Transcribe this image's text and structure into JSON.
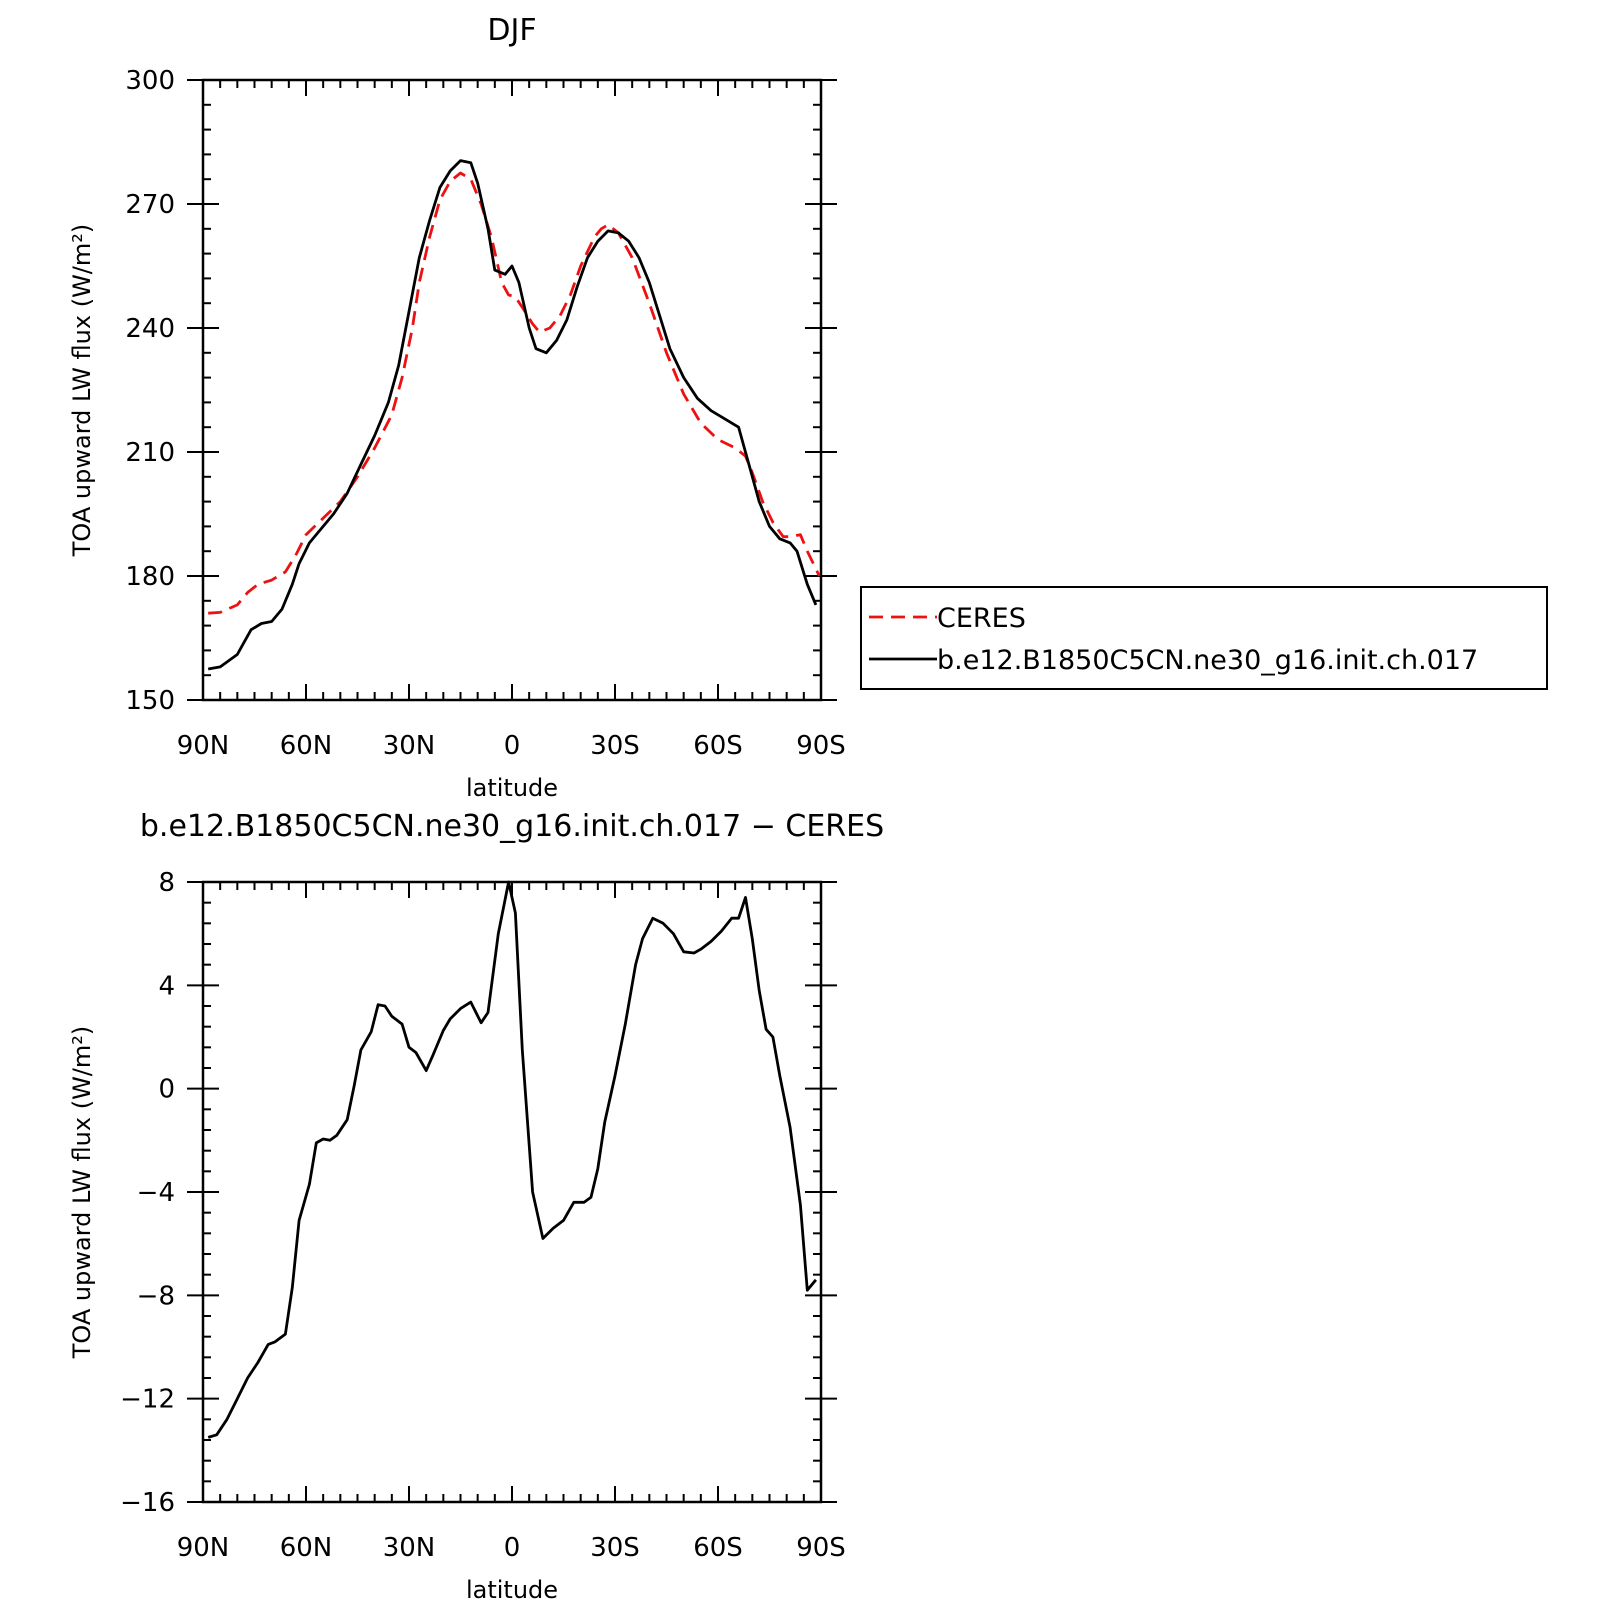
{
  "chart_data": [
    {
      "type": "line",
      "title": "DJF",
      "xlabel": "latitude",
      "ylabel": "TOA upward LW flux (W/m²)",
      "ylim": [
        150,
        300
      ],
      "yticks": [
        "300",
        "270",
        "240",
        "210",
        "180",
        "150"
      ],
      "yticks_values": [
        300,
        270,
        240,
        210,
        180,
        150
      ],
      "xlim": [
        90,
        -90
      ],
      "xticks": [
        "90N",
        "60N",
        "30N",
        "0",
        "30S",
        "60S",
        "90S"
      ],
      "xticks_values": [
        90,
        60,
        30,
        0,
        -30,
        -60,
        -90
      ],
      "grid": false,
      "legend": {
        "position": "right",
        "entries": [
          "CERES",
          "b.e12.B1850C5CN.ne30_g16.init.ch.017"
        ]
      },
      "series": [
        {
          "name": "CERES",
          "color": "#ee1111",
          "dash": true,
          "points": [
            [
              88.5,
              171.0
            ],
            [
              85,
              171.2
            ],
            [
              80,
              173.0
            ],
            [
              77,
              176.0
            ],
            [
              74,
              178.0
            ],
            [
              70,
              179.0
            ],
            [
              66,
              181.0
            ],
            [
              63,
              185.0
            ],
            [
              60,
              190.0
            ],
            [
              55,
              194.0
            ],
            [
              50,
              198.0
            ],
            [
              45,
              204.0
            ],
            [
              40,
              211.0
            ],
            [
              35,
              219.0
            ],
            [
              32,
              228.0
            ],
            [
              29,
              240.0
            ],
            [
              27,
              251.0
            ],
            [
              24,
              262.0
            ],
            [
              21,
              271.0
            ],
            [
              18,
              275.5
            ],
            [
              15,
              277.5
            ],
            [
              12,
              276.0
            ],
            [
              9,
              270.0
            ],
            [
              6,
              262.0
            ],
            [
              3,
              251.0
            ],
            [
              1,
              248.0
            ],
            [
              -1,
              247.5
            ],
            [
              -3,
              245.0
            ],
            [
              -6,
              241.0
            ],
            [
              -8,
              239.0
            ],
            [
              -11,
              240.0
            ],
            [
              -14,
              243.0
            ],
            [
              -17,
              248.0
            ],
            [
              -20,
              255.0
            ],
            [
              -24,
              262.0
            ],
            [
              -26,
              264.0
            ],
            [
              -28,
              265.0
            ],
            [
              -31,
              263.0
            ],
            [
              -35,
              257.0
            ],
            [
              -40,
              246.0
            ],
            [
              -45,
              234.0
            ],
            [
              -50,
              224.0
            ],
            [
              -55,
              217.0
            ],
            [
              -60,
              213.0
            ],
            [
              -65,
              211.0
            ],
            [
              -68,
              209.0
            ],
            [
              -70,
              205.0
            ],
            [
              -73,
              198.0
            ],
            [
              -76,
              193.0
            ],
            [
              -79,
              189.5
            ],
            [
              -81,
              189.5
            ],
            [
              -84,
              190.0
            ],
            [
              -86,
              186.0
            ],
            [
              -89.5,
              180.0
            ]
          ]
        },
        {
          "name": "b.e12.B1850C5CN.ne30_g16.init.ch.017",
          "color": "#000000",
          "dash": false,
          "points": [
            [
              88.5,
              157.5
            ],
            [
              85,
              158.0
            ],
            [
              80,
              161.0
            ],
            [
              78,
              164.0
            ],
            [
              76,
              167.0
            ],
            [
              73,
              168.5
            ],
            [
              70,
              169.0
            ],
            [
              67,
              172.0
            ],
            [
              64,
              178.0
            ],
            [
              62,
              183.0
            ],
            [
              59,
              188.0
            ],
            [
              56,
              191.0
            ],
            [
              52,
              195.0
            ],
            [
              48,
              200.0
            ],
            [
              44,
              207.0
            ],
            [
              40,
              214.0
            ],
            [
              36,
              222.0
            ],
            [
              33,
              231.0
            ],
            [
              30,
              244.0
            ],
            [
              27,
              257.0
            ],
            [
              24,
              266.0
            ],
            [
              21,
              274.0
            ],
            [
              18,
              278.0
            ],
            [
              15,
              280.5
            ],
            [
              12,
              280.0
            ],
            [
              10,
              275.0
            ],
            [
              7,
              264.0
            ],
            [
              5,
              254.0
            ],
            [
              2,
              253.0
            ],
            [
              0,
              255.0
            ],
            [
              -2,
              251.0
            ],
            [
              -5,
              240.0
            ],
            [
              -7,
              235.0
            ],
            [
              -10,
              234.0
            ],
            [
              -13,
              237.0
            ],
            [
              -16,
              242.0
            ],
            [
              -19,
              250.0
            ],
            [
              -22,
              257.0
            ],
            [
              -25,
              261.0
            ],
            [
              -28,
              263.5
            ],
            [
              -31,
              263.0
            ],
            [
              -34,
              261.0
            ],
            [
              -37,
              257.0
            ],
            [
              -40,
              251.0
            ],
            [
              -43,
              243.0
            ],
            [
              -46,
              235.0
            ],
            [
              -50,
              228.0
            ],
            [
              -54,
              223.0
            ],
            [
              -58,
              220.0
            ],
            [
              -62,
              218.0
            ],
            [
              -66,
              216.0
            ],
            [
              -69,
              207.0
            ],
            [
              -72,
              198.0
            ],
            [
              -75,
              192.0
            ],
            [
              -78,
              189.0
            ],
            [
              -81,
              188.0
            ],
            [
              -83,
              186.0
            ],
            [
              -86,
              178.0
            ],
            [
              -88.5,
              173.0
            ]
          ]
        }
      ]
    },
    {
      "type": "line",
      "title": "b.e12.B1850C5CN.ne30_g16.init.ch.017 − CERES",
      "xlabel": "latitude",
      "ylabel": "TOA upward LW flux (W/m²)",
      "ylim": [
        -16,
        8
      ],
      "yticks": [
        "8",
        "4",
        "0",
        "−4",
        "−8",
        "−12",
        "−16"
      ],
      "yticks_values": [
        8,
        4,
        0,
        -4,
        -8,
        -12,
        -16
      ],
      "xlim": [
        90,
        -90
      ],
      "xticks": [
        "90N",
        "60N",
        "30N",
        "0",
        "30S",
        "60S",
        "90S"
      ],
      "xticks_values": [
        90,
        60,
        30,
        0,
        -30,
        -60,
        -90
      ],
      "grid": false,
      "series": [
        {
          "color": "#000000",
          "dash": false,
          "points": [
            [
              88.5,
              -13.5
            ],
            [
              86,
              -13.4
            ],
            [
              83,
              -12.8
            ],
            [
              80,
              -12.0
            ],
            [
              77,
              -11.2
            ],
            [
              74,
              -10.6
            ],
            [
              71,
              -9.9
            ],
            [
              69,
              -9.8
            ],
            [
              66,
              -9.5
            ],
            [
              64,
              -7.7
            ],
            [
              62,
              -5.1
            ],
            [
              59,
              -3.7
            ],
            [
              57,
              -2.1
            ],
            [
              55,
              -1.95
            ],
            [
              53,
              -2.0
            ],
            [
              51,
              -1.8
            ],
            [
              48,
              -1.2
            ],
            [
              46,
              0.1
            ],
            [
              44,
              1.5
            ],
            [
              41,
              2.2
            ],
            [
              39,
              3.25
            ],
            [
              37,
              3.2
            ],
            [
              35,
              2.8
            ],
            [
              32,
              2.5
            ],
            [
              30,
              1.6
            ],
            [
              28,
              1.4
            ],
            [
              25,
              0.7
            ],
            [
              23,
              1.3
            ],
            [
              20,
              2.25
            ],
            [
              18,
              2.7
            ],
            [
              15,
              3.1
            ],
            [
              12,
              3.35
            ],
            [
              9,
              2.55
            ],
            [
              7,
              2.95
            ],
            [
              4,
              6.0
            ],
            [
              1,
              8.0
            ],
            [
              -1,
              6.8
            ],
            [
              -3,
              1.5
            ],
            [
              -6,
              -4.0
            ],
            [
              -9,
              -5.8
            ],
            [
              -12,
              -5.4
            ],
            [
              -15,
              -5.1
            ],
            [
              -18,
              -4.4
            ],
            [
              -21,
              -4.4
            ],
            [
              -23,
              -4.2
            ],
            [
              -25,
              -3.1
            ],
            [
              -27,
              -1.3
            ],
            [
              -30,
              0.5
            ],
            [
              -33,
              2.5
            ],
            [
              -36,
              4.8
            ],
            [
              -38,
              5.8
            ],
            [
              -41,
              6.6
            ],
            [
              -44,
              6.4
            ],
            [
              -47,
              6.0
            ],
            [
              -50,
              5.3
            ],
            [
              -53,
              5.25
            ],
            [
              -55,
              5.4
            ],
            [
              -58,
              5.7
            ],
            [
              -61,
              6.1
            ],
            [
              -64,
              6.6
            ],
            [
              -66,
              6.6
            ],
            [
              -68,
              7.4
            ],
            [
              -70,
              5.8
            ],
            [
              -72,
              3.8
            ],
            [
              -74,
              2.3
            ],
            [
              -76,
              2.0
            ],
            [
              -78,
              0.5
            ],
            [
              -81,
              -1.5
            ],
            [
              -84,
              -4.5
            ],
            [
              -86,
              -7.8
            ],
            [
              -88.5,
              -7.4
            ]
          ]
        }
      ]
    }
  ]
}
